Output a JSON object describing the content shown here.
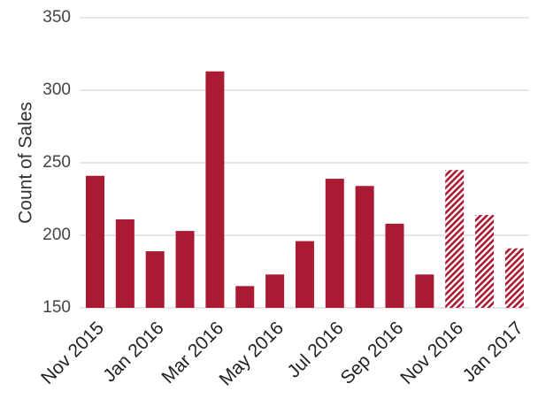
{
  "colors": {
    "bar": "#ab1a33",
    "grid": "#cccccc",
    "background": "#ffffff"
  },
  "chart_data": {
    "type": "bar",
    "title": "",
    "xlabel": "",
    "ylabel": "Count of Sales",
    "ylim": [
      150,
      350
    ],
    "yticks": [
      150,
      200,
      250,
      300,
      350
    ],
    "grid": true,
    "categories": [
      "Nov 2015",
      "Dec 2015",
      "Jan 2016",
      "Feb 2016",
      "Mar 2016",
      "Apr 2016",
      "May 2016",
      "Jun 2016",
      "Jul 2016",
      "Aug 2016",
      "Sep 2016",
      "Oct 2016",
      "Nov 2016",
      "Dec 2016",
      "Jan 2017"
    ],
    "xtick_labels": [
      "Nov 2015",
      "Jan 2016",
      "Mar 2016",
      "May 2016",
      "Jul 2016",
      "Sep 2016",
      "Nov 2016",
      "Jan 2017"
    ],
    "values": [
      241,
      211,
      189,
      203,
      313,
      165,
      173,
      196,
      239,
      234,
      208,
      173,
      245,
      214,
      191
    ],
    "hatched": [
      false,
      false,
      false,
      false,
      false,
      false,
      false,
      false,
      false,
      false,
      false,
      false,
      true,
      true,
      true
    ]
  }
}
